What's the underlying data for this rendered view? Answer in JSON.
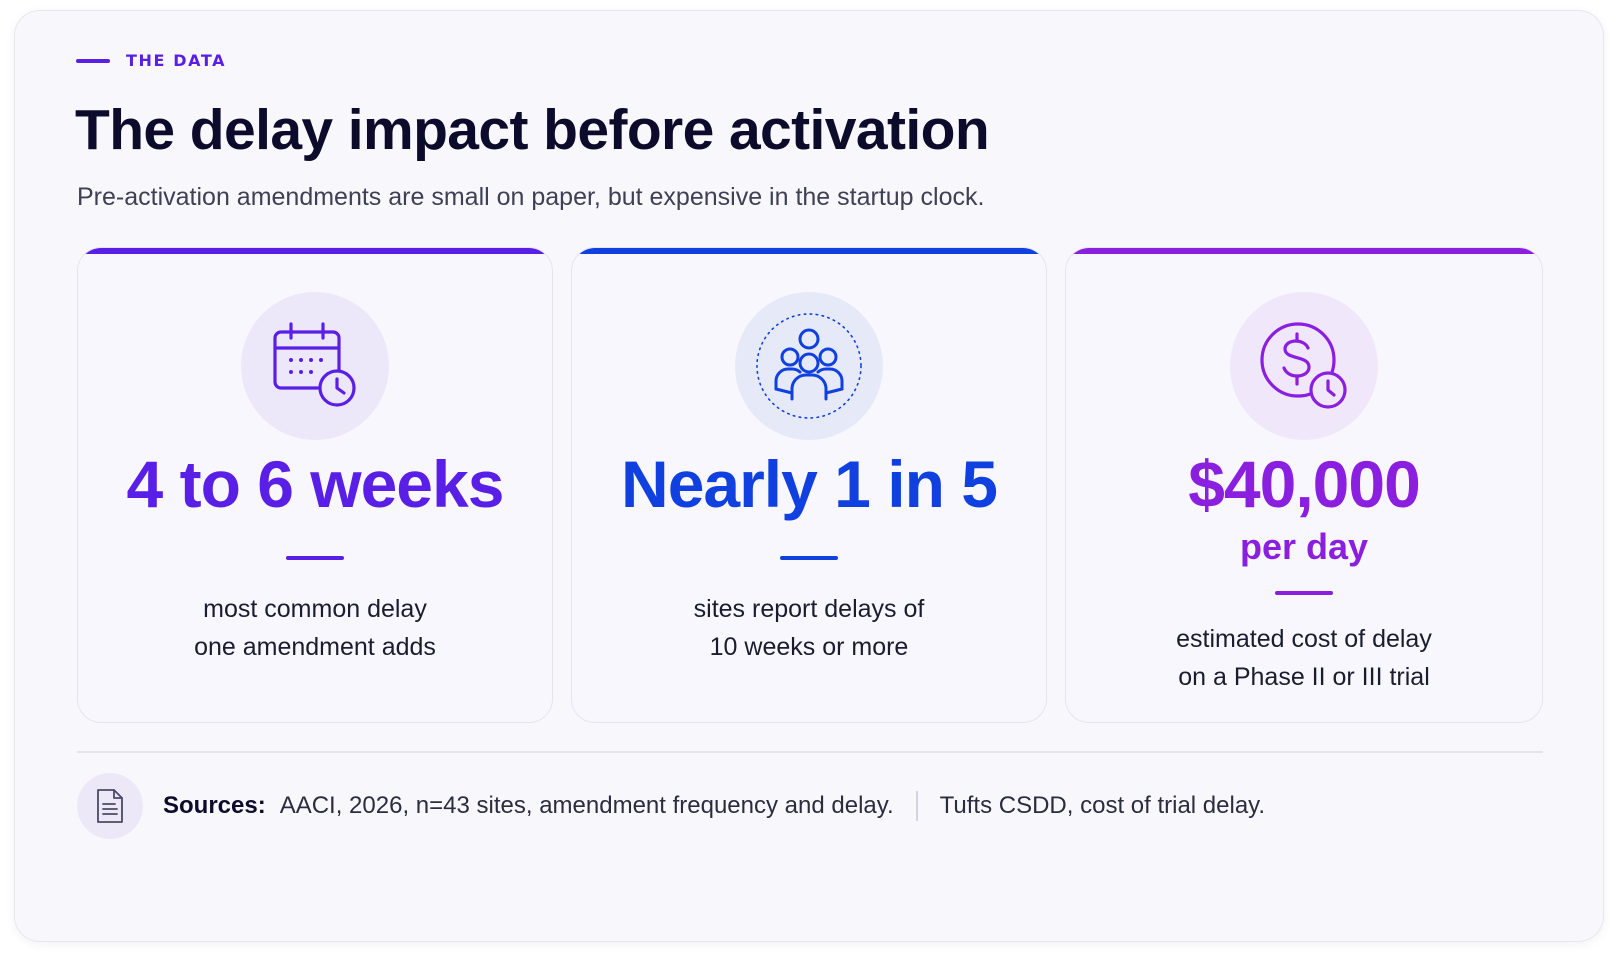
{
  "header": {
    "eyebrow": "THE DATA",
    "title": "The delay impact before activation",
    "subtitle": "Pre-activation amendments are small on paper, but expensive in the startup clock."
  },
  "cards": [
    {
      "icon": "calendar-clock-icon",
      "accent": "#5a1fe6",
      "stat": "4 to 6 weeks",
      "desc_line1": "most common delay",
      "desc_line2": "one amendment adds"
    },
    {
      "icon": "people-group-icon",
      "accent": "#1040e0",
      "stat": "Nearly 1 in 5",
      "desc_line1": "sites report delays of",
      "desc_line2": "10 weeks or more"
    },
    {
      "icon": "dollar-clock-icon",
      "accent": "#8a1fe0",
      "stat": "$40,000",
      "stat_sub": "per day",
      "desc_line1": "estimated cost of delay",
      "desc_line2": "on a Phase II or III trial"
    }
  ],
  "sources": {
    "icon": "document-icon",
    "label": "Sources:",
    "items": [
      "AACI, 2026, n=43 sites, amendment frequency and delay.",
      "Tufts CSDD, cost of trial delay."
    ]
  }
}
